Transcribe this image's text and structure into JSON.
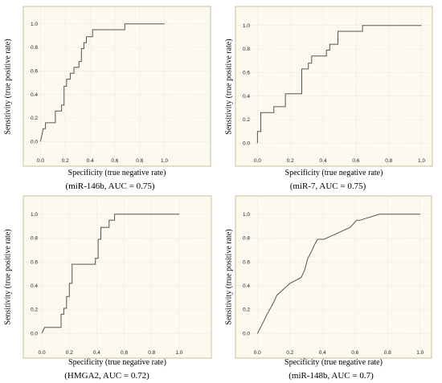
{
  "colors": {
    "panel_bg": "#FCF9EE",
    "panel_border": "#C9C09A",
    "grid": "#D7D7D7",
    "curve": "#555555"
  },
  "chart_data": [
    {
      "type": "line",
      "caption": "(miR-146b, AUC = 0.75)",
      "xlabel": "Specificity (true negative rate)",
      "ylabel": "Sensitivity (true positive rate)",
      "xlim": [
        -0.1,
        1.1
      ],
      "ylim": [
        -0.1,
        1.1
      ],
      "ticks": [
        "0.0",
        "0.2",
        "0.4",
        "0.6",
        "0.8",
        "1.0"
      ],
      "grid": true,
      "x": [
        0.0,
        0.02,
        0.02,
        0.04,
        0.04,
        0.12,
        0.12,
        0.17,
        0.17,
        0.19,
        0.19,
        0.21,
        0.21,
        0.24,
        0.24,
        0.27,
        0.27,
        0.31,
        0.31,
        0.33,
        0.33,
        0.35,
        0.35,
        0.37,
        0.37,
        0.38,
        0.38,
        0.42,
        0.42,
        0.44,
        0.44,
        0.68,
        0.68,
        1.0
      ],
      "y": [
        0.0,
        0.1,
        0.11,
        0.11,
        0.16,
        0.16,
        0.26,
        0.26,
        0.31,
        0.31,
        0.47,
        0.47,
        0.53,
        0.53,
        0.58,
        0.58,
        0.63,
        0.63,
        0.68,
        0.68,
        0.79,
        0.79,
        0.84,
        0.84,
        0.89,
        0.89,
        0.89,
        0.89,
        0.95,
        0.95,
        0.95,
        0.95,
        1.0,
        1.0
      ]
    },
    {
      "type": "line",
      "caption": "(miR-7, AUC = 0.75)",
      "xlabel": "Specificity (true negative rate)",
      "ylabel": "Sensitivity (true positive rate)",
      "xlim": [
        -0.1,
        1.1
      ],
      "ylim": [
        -0.1,
        1.1
      ],
      "ticks": [
        "0.0",
        "0.2",
        "0.4",
        "0.6",
        "0.8",
        "1.0"
      ],
      "grid": true,
      "x": [
        0.0,
        0.0,
        0.02,
        0.02,
        0.1,
        0.1,
        0.17,
        0.17,
        0.27,
        0.27,
        0.31,
        0.31,
        0.33,
        0.33,
        0.36,
        0.36,
        0.42,
        0.42,
        0.44,
        0.44,
        0.49,
        0.49,
        0.64,
        0.64,
        1.0
      ],
      "y": [
        0.0,
        0.1,
        0.1,
        0.26,
        0.26,
        0.31,
        0.31,
        0.42,
        0.42,
        0.63,
        0.63,
        0.68,
        0.68,
        0.74,
        0.74,
        0.74,
        0.74,
        0.79,
        0.79,
        0.84,
        0.84,
        0.95,
        0.95,
        1.0,
        1.0
      ]
    },
    {
      "type": "line",
      "caption": "(HMGA2, AUC = 0.72)",
      "xlabel": "Specificity (true negative rate)",
      "ylabel": "Sensitivity (true positive rate)",
      "xlim": [
        -0.1,
        1.1
      ],
      "ylim": [
        -0.1,
        1.1
      ],
      "ticks": [
        "0.0",
        "0.2",
        "0.4",
        "0.6",
        "0.8",
        "1.0"
      ],
      "grid": true,
      "x": [
        0.0,
        0.02,
        0.02,
        0.14,
        0.14,
        0.16,
        0.16,
        0.18,
        0.18,
        0.2,
        0.2,
        0.22,
        0.22,
        0.39,
        0.39,
        0.41,
        0.41,
        0.43,
        0.43,
        0.49,
        0.49,
        0.53,
        0.53,
        0.56,
        0.56,
        1.0
      ],
      "y": [
        0.0,
        0.05,
        0.05,
        0.05,
        0.16,
        0.16,
        0.21,
        0.21,
        0.31,
        0.31,
        0.42,
        0.42,
        0.58,
        0.58,
        0.63,
        0.63,
        0.79,
        0.79,
        0.89,
        0.89,
        0.95,
        0.95,
        1.0,
        1.0,
        1.0,
        1.0
      ]
    },
    {
      "type": "line",
      "caption": "(miR-148b, AUC = 0.7)",
      "xlabel": "Specificity (true negative rate)",
      "ylabel": "Sensitivity (true positive rate)",
      "xlim": [
        -0.1,
        1.1
      ],
      "ylim": [
        -0.1,
        1.1
      ],
      "ticks": [
        "0.0",
        "0.2",
        "0.4",
        "0.6",
        "0.8",
        "1.0"
      ],
      "grid": true,
      "x": [
        0.0,
        0.02,
        0.02,
        0.06,
        0.06,
        0.1,
        0.1,
        0.12,
        0.12,
        0.16,
        0.16,
        0.2,
        0.2,
        0.27,
        0.27,
        0.29,
        0.29,
        0.31,
        0.31,
        0.33,
        0.33,
        0.35,
        0.35,
        0.37,
        0.37,
        0.41,
        0.41,
        0.49,
        0.49,
        0.57,
        0.57,
        0.61,
        0.61,
        0.63,
        0.63,
        0.75,
        0.75,
        1.0
      ],
      "y": [
        0.0,
        0.05,
        0.05,
        0.16,
        0.16,
        0.26,
        0.26,
        0.32,
        0.32,
        0.37,
        0.37,
        0.42,
        0.42,
        0.47,
        0.47,
        0.53,
        0.53,
        0.63,
        0.63,
        0.68,
        0.68,
        0.74,
        0.74,
        0.79,
        0.79,
        0.79,
        0.79,
        0.84,
        0.84,
        0.89,
        0.89,
        0.95,
        0.95,
        0.95,
        0.95,
        1.0,
        1.0,
        1.0
      ]
    }
  ]
}
